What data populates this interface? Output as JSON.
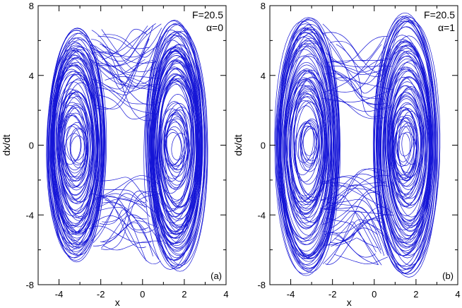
{
  "figure": {
    "panels": [
      {
        "label": "(a)",
        "annotation_F": "F=20.5",
        "annotation_alpha": "α=0"
      },
      {
        "label": "(b)",
        "annotation_F": "F=20.5",
        "annotation_alpha": "α=1"
      }
    ]
  },
  "chart_data": [
    {
      "type": "line",
      "title": "",
      "xlabel": "x",
      "ylabel": "dx/dt",
      "xlim": [
        -5,
        4
      ],
      "ylim": [
        -8,
        8
      ],
      "xticks": [
        -4,
        -2,
        0,
        2,
        4
      ],
      "yticks": [
        -8,
        -4,
        0,
        4,
        8
      ],
      "ytick_labels": [
        "-8",
        "-4",
        "0",
        "4",
        "8"
      ],
      "grid": false,
      "line_color": "#1515d6",
      "annotations": [
        "F=20.5",
        "α=0",
        "(a)"
      ],
      "series": [
        {
          "description_points": [
            [
              -4.5,
              0.0
            ],
            [
              -4.35,
              3.6
            ],
            [
              -3.9,
              5.7
            ],
            [
              -3.2,
              6.3
            ],
            [
              -2.6,
              5.5
            ],
            [
              -2.1,
              3.2
            ],
            [
              -1.9,
              0.0
            ],
            [
              -2.1,
              -3.3
            ],
            [
              -2.6,
              -5.8
            ],
            [
              -3.2,
              -6.6
            ],
            [
              -3.9,
              -6.0
            ],
            [
              -4.35,
              -3.8
            ],
            [
              -4.5,
              0.0
            ],
            [
              -3.2,
              0.0
            ],
            [
              -1.0,
              -6.8
            ],
            [
              0.5,
              -6.6
            ],
            [
              1.5,
              -6.4
            ],
            [
              2.5,
              -5.6
            ],
            [
              2.85,
              -3.0
            ],
            [
              3.0,
              0.0
            ],
            [
              2.8,
              3.6
            ],
            [
              2.3,
              6.4
            ],
            [
              1.6,
              7.3
            ],
            [
              0.6,
              6.6
            ],
            [
              0.2,
              4.2
            ],
            [
              -0.2,
              0.5
            ],
            [
              -1.9,
              0.0
            ]
          ]
        }
      ]
    },
    {
      "type": "line",
      "title": "",
      "xlabel": "x",
      "ylabel": "dx/dt",
      "xlim": [
        -5,
        4
      ],
      "ylim": [
        -8,
        8
      ],
      "xticks": [
        -4,
        -2,
        0,
        2,
        4
      ],
      "yticks": [
        -8,
        -4,
        0,
        4,
        8
      ],
      "ytick_labels": [
        "-8",
        "-4",
        "0",
        "4",
        "8"
      ],
      "grid": false,
      "line_color": "#1515d6",
      "annotations": [
        "F=20.5",
        "α=1",
        "(b)"
      ],
      "series": [
        {
          "description_points": [
            [
              -4.7,
              0.0
            ],
            [
              -4.5,
              4.0
            ],
            [
              -3.9,
              6.6
            ],
            [
              -3.2,
              7.0
            ],
            [
              -2.5,
              6.0
            ],
            [
              -2.0,
              3.4
            ],
            [
              -1.8,
              0.0
            ],
            [
              -2.0,
              -3.6
            ],
            [
              -2.6,
              -6.6
            ],
            [
              -3.2,
              -7.6
            ],
            [
              -3.9,
              -6.8
            ],
            [
              -4.5,
              -4.2
            ],
            [
              -4.7,
              0.0
            ],
            [
              -3.2,
              0.0
            ],
            [
              -1.0,
              -7.0
            ],
            [
              0.5,
              -7.0
            ],
            [
              1.5,
              -6.4
            ],
            [
              2.6,
              -5.8
            ],
            [
              2.95,
              -3.0
            ],
            [
              3.05,
              0.0
            ],
            [
              2.9,
              3.8
            ],
            [
              2.4,
              6.6
            ],
            [
              1.6,
              7.6
            ],
            [
              0.6,
              6.8
            ],
            [
              0.1,
              4.4
            ],
            [
              -0.3,
              0.6
            ],
            [
              -1.8,
              0.0
            ]
          ]
        }
      ]
    }
  ]
}
